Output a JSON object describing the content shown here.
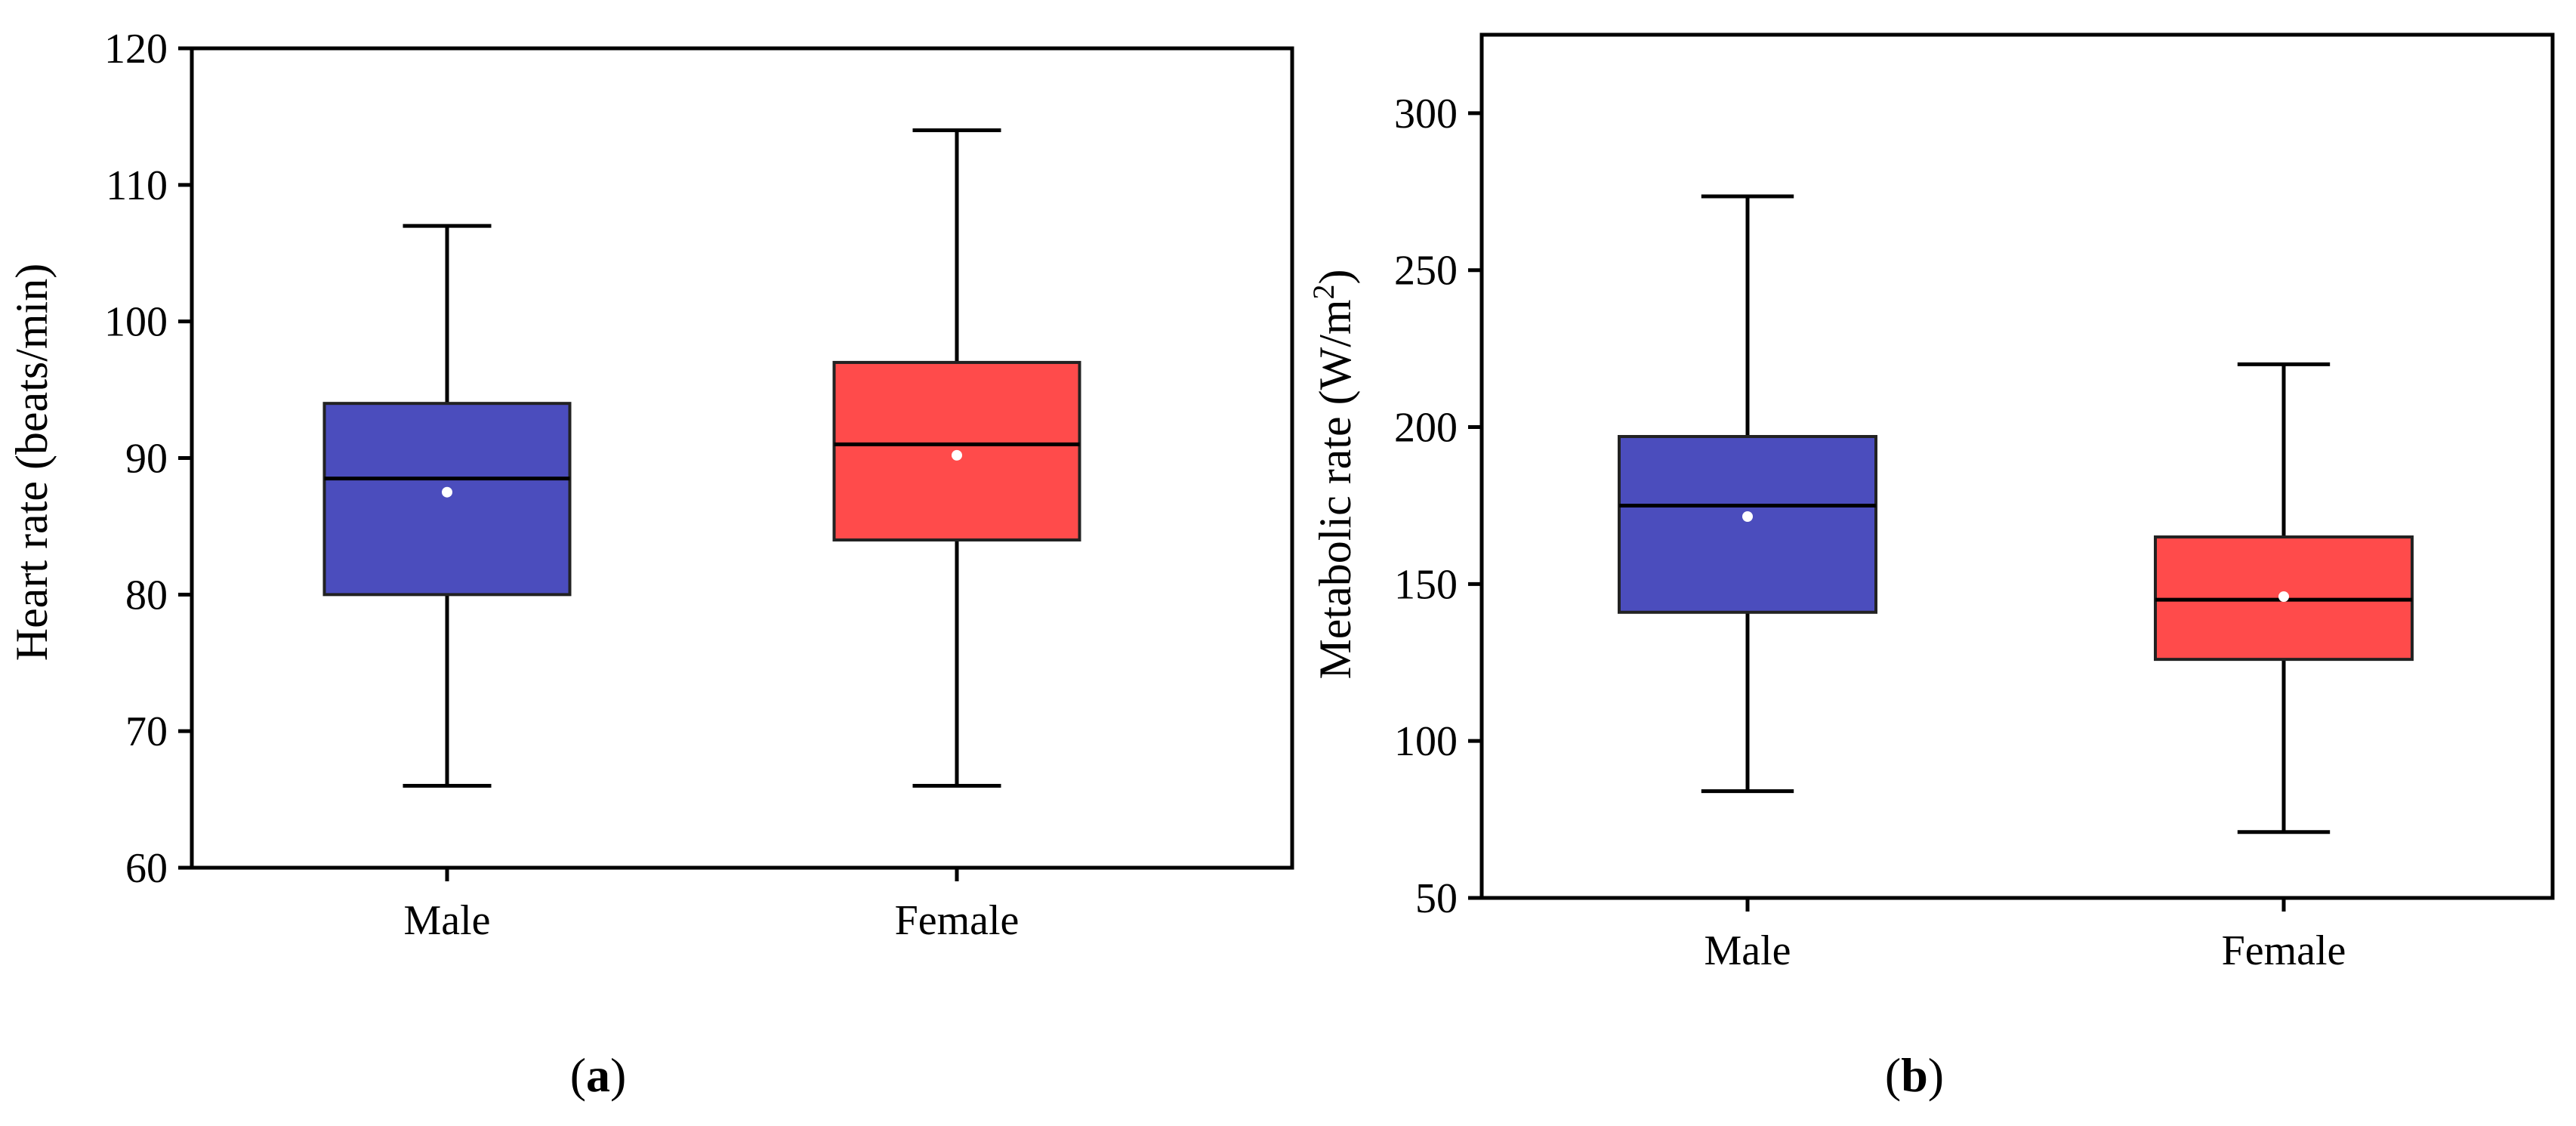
{
  "chart_data": [
    {
      "type": "box",
      "panel_label": "a",
      "xlabel": "",
      "ylabel": "Heart rate (beats/min)",
      "ylim": [
        60,
        120
      ],
      "yticks": [
        60,
        70,
        80,
        90,
        100,
        110,
        120
      ],
      "categories": [
        "Male",
        "Female"
      ],
      "boxes": [
        {
          "name": "Male",
          "color": "#4B4DBD",
          "whisker_low": 66,
          "q1": 80,
          "median": 88.5,
          "mean": 87.5,
          "q3": 94,
          "whisker_high": 107
        },
        {
          "name": "Female",
          "color": "#FF4B4B",
          "whisker_low": 66,
          "q1": 84,
          "median": 91,
          "mean": 90.2,
          "q3": 97,
          "whisker_high": 114
        }
      ]
    },
    {
      "type": "box",
      "panel_label": "b",
      "xlabel": "",
      "ylabel": "Metabolic rate (W/m",
      "ylabel_sup": "2",
      "ylabel_end": ")",
      "ylim": [
        50,
        325
      ],
      "yticks": [
        50,
        100,
        150,
        200,
        250,
        300
      ],
      "categories": [
        "Male",
        "Female"
      ],
      "boxes": [
        {
          "name": "Male",
          "color": "#4B4DBD",
          "whisker_low": 84,
          "q1": 141,
          "median": 175,
          "mean": 171.5,
          "q3": 197,
          "whisker_high": 273.5
        },
        {
          "name": "Female",
          "color": "#FF4B4B",
          "whisker_low": 71,
          "q1": 126,
          "median": 145,
          "mean": 146,
          "q3": 165,
          "whisker_high": 220
        }
      ]
    }
  ]
}
